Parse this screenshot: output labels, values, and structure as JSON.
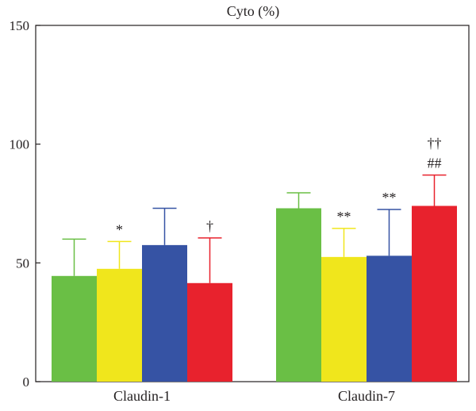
{
  "chart_data": {
    "type": "bar",
    "title": "Cyto (%)",
    "xlabel": "",
    "ylabel": "",
    "ylim": [
      0,
      150
    ],
    "yticks": [
      0,
      50,
      100,
      150
    ],
    "grid": false,
    "legend": "none",
    "categories": [
      "Claudin-1",
      "Claudin-7"
    ],
    "series": [
      {
        "color": "#6abf45",
        "values": [
          44.5,
          73.0
        ],
        "errors": [
          15.5,
          6.5
        ],
        "annotations": [
          "",
          ""
        ]
      },
      {
        "color": "#f0e61c",
        "values": [
          47.5,
          52.5
        ],
        "errors": [
          11.5,
          12.0
        ],
        "annotations": [
          "*",
          "**"
        ]
      },
      {
        "color": "#3653a4",
        "values": [
          57.5,
          53.0
        ],
        "errors": [
          15.5,
          19.5
        ],
        "annotations": [
          "",
          "**"
        ]
      },
      {
        "color": "#e8222d",
        "values": [
          41.5,
          74.0
        ],
        "errors": [
          19.0,
          13.0
        ],
        "annotations": [
          "†",
          "##|††"
        ]
      }
    ]
  }
}
